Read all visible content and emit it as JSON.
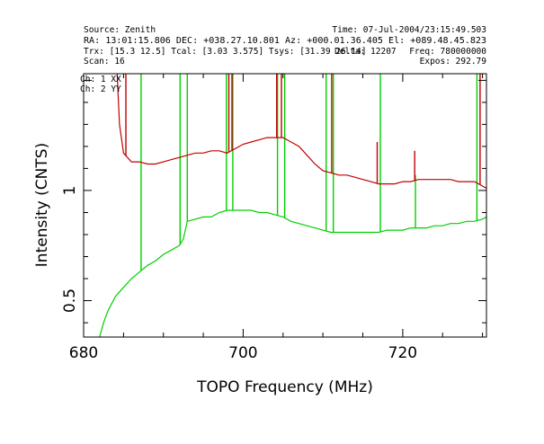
{
  "header": {
    "source": "Source: Zenith",
    "time": "Time: 07-Jul-2004/23:15:49.503",
    "coords": "RA: 13:01:15.806 DEC: +038.27.10.801   Az: +000.01.36.405 El: +089.48.45.823",
    "temps": "Trx: [15.3 12.5]  Tcal: [3.03 3.575]   Tsys: [31.39 26.14]",
    "delta": "Delta: 12207",
    "freq": "Freq: 780000000",
    "scan": "Scan: 16",
    "expos": "Expos: 292.79"
  },
  "colors": {
    "ch1": "#c00000",
    "ch2": "#00d000",
    "axes": "#000000",
    "background": "#ffffff"
  },
  "chart_data": {
    "type": "line",
    "title": "",
    "xlabel": "TOPO Frequency (MHz)",
    "ylabel": "Intensity (CNTS)",
    "xlim": [
      680,
      730.5
    ],
    "ylim": [
      0.335,
      1.53
    ],
    "x_ticks": [
      680,
      700,
      720
    ],
    "x_tick_labels": [
      "680",
      "700",
      "720"
    ],
    "y_ticks": [
      0.5,
      1
    ],
    "y_tick_labels": [
      "0.5",
      "1"
    ],
    "grid": false,
    "legend_position": "top-left",
    "series": [
      {
        "name": "Ch: 1 XX",
        "color": "#c00000",
        "x": [
          684.2,
          684.5,
          685,
          686,
          687,
          688,
          689,
          690,
          691,
          692,
          693,
          694,
          695,
          696,
          697,
          698,
          699,
          700,
          701,
          702,
          703,
          704,
          705,
          706,
          707,
          708,
          709,
          710,
          711,
          712,
          713,
          714,
          715,
          716,
          717,
          718,
          719,
          720,
          721,
          722,
          723,
          724,
          725,
          726,
          727,
          728,
          729,
          730,
          730.5
        ],
        "y": [
          1.53,
          1.3,
          1.17,
          1.13,
          1.13,
          1.12,
          1.12,
          1.13,
          1.14,
          1.15,
          1.16,
          1.17,
          1.17,
          1.18,
          1.18,
          1.17,
          1.19,
          1.21,
          1.22,
          1.23,
          1.24,
          1.24,
          1.24,
          1.22,
          1.2,
          1.16,
          1.12,
          1.09,
          1.08,
          1.07,
          1.07,
          1.06,
          1.05,
          1.04,
          1.03,
          1.03,
          1.03,
          1.04,
          1.04,
          1.05,
          1.05,
          1.05,
          1.05,
          1.05,
          1.04,
          1.04,
          1.04,
          1.02,
          1.01
        ]
      },
      {
        "name": "Ch: 2 YY",
        "color": "#00d000",
        "x": [
          682,
          682.5,
          683,
          684,
          685,
          686,
          687,
          688,
          689,
          690,
          691,
          692,
          692.5,
          693,
          694,
          695,
          696,
          697,
          698,
          699,
          700,
          701,
          702,
          703,
          704,
          705,
          706,
          707,
          708,
          709,
          710,
          711,
          712,
          713,
          714,
          715,
          716,
          717,
          718,
          719,
          720,
          721,
          722,
          723,
          724,
          725,
          726,
          727,
          728,
          729,
          730,
          730.5
        ],
        "y": [
          0.335,
          0.4,
          0.45,
          0.52,
          0.56,
          0.6,
          0.63,
          0.66,
          0.68,
          0.71,
          0.73,
          0.75,
          0.78,
          0.86,
          0.87,
          0.88,
          0.88,
          0.9,
          0.91,
          0.91,
          0.91,
          0.91,
          0.9,
          0.9,
          0.89,
          0.88,
          0.86,
          0.85,
          0.84,
          0.83,
          0.82,
          0.81,
          0.81,
          0.81,
          0.81,
          0.81,
          0.81,
          0.81,
          0.82,
          0.82,
          0.82,
          0.83,
          0.83,
          0.83,
          0.84,
          0.84,
          0.85,
          0.85,
          0.86,
          0.86,
          0.87,
          0.88
        ]
      }
    ],
    "rfi_spikes": {
      "ch1": [
        [
          685.3,
          1.53
        ],
        [
          698.2,
          1.53
        ],
        [
          698.6,
          1.53
        ],
        [
          704.2,
          1.53
        ],
        [
          704.8,
          1.53
        ],
        [
          711.1,
          1.53
        ],
        [
          716.8,
          1.22
        ],
        [
          721.5,
          1.18
        ],
        [
          729.7,
          1.53
        ]
      ],
      "ch2": [
        [
          687.2,
          1.53
        ],
        [
          692.1,
          1.53
        ],
        [
          693.0,
          1.53
        ],
        [
          697.9,
          1.53
        ],
        [
          698.7,
          1.53
        ],
        [
          704.3,
          1.53
        ],
        [
          705.2,
          1.53
        ],
        [
          710.4,
          1.53
        ],
        [
          711.3,
          1.53
        ],
        [
          717.2,
          1.53
        ],
        [
          721.6,
          1.07
        ],
        [
          729.3,
          1.53
        ]
      ]
    }
  }
}
